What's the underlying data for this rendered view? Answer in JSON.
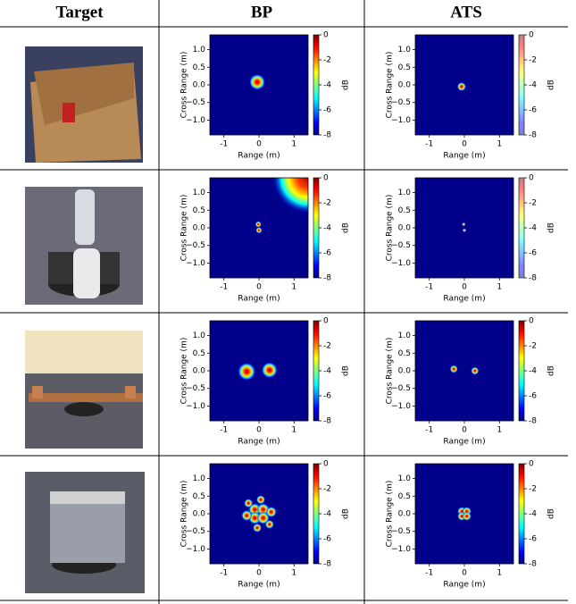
{
  "header": [
    "Target",
    "BP",
    "ATS"
  ],
  "axes": {
    "xlabel": "Range (m)",
    "ylabel": "Cross Range (m)",
    "colorbar_label": "dB",
    "xlim": [
      -1.4,
      1.4
    ],
    "ylim": [
      -1.42,
      1.42
    ],
    "xticks": [
      -1,
      0,
      1
    ],
    "yticks": [
      {
        "value": 1,
        "label": "1.0"
      },
      {
        "value": 0.5,
        "label": "0.5"
      },
      {
        "value": 0,
        "label": "0.0"
      },
      {
        "value": -0.5,
        "label": "−0.5"
      },
      {
        "value": -1,
        "label": "−1.0"
      }
    ],
    "colorbar_lim": [
      -8,
      0
    ],
    "colorbar_ticks": [
      0,
      -2,
      -4,
      -6,
      -8
    ]
  }
}
